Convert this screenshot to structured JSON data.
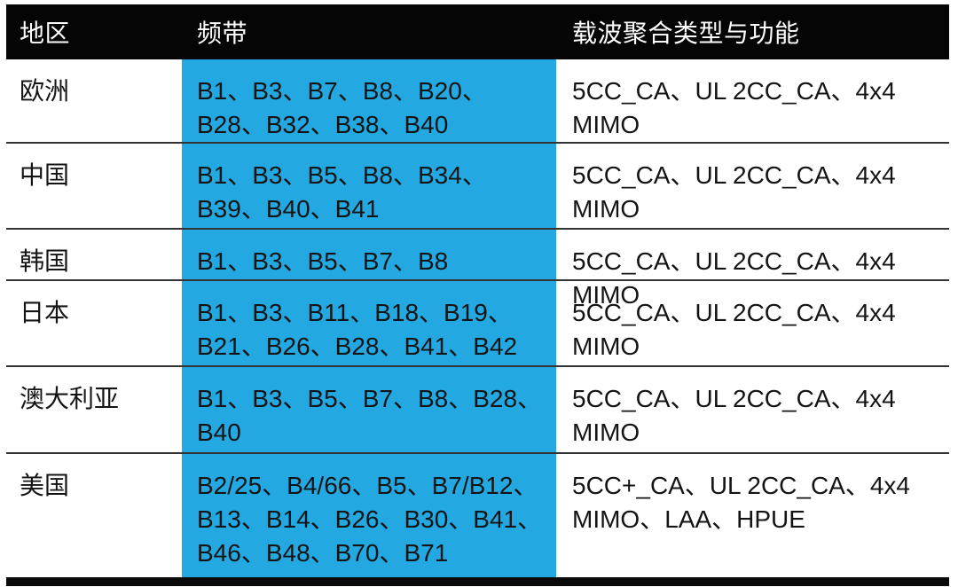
{
  "table": {
    "header": {
      "region": "地区",
      "bands": "频带",
      "ca": "载波聚合类型与功能"
    },
    "rows": [
      {
        "region": "欧洲",
        "bands": [
          "B1、B3、B7、B8、B20、",
          "B28、B32、B38、B40"
        ],
        "ca": [
          "5CC_CA、UL 2CC_CA、4x4 MIMO"
        ]
      },
      {
        "region": "中国",
        "bands": [
          "B1、B3、B5、B8、B34、",
          "B39、B40、B41"
        ],
        "ca": [
          "5CC_CA、UL 2CC_CA、4x4 MIMO"
        ]
      },
      {
        "region": "韩国",
        "bands": [
          "B1、B3、B5、B7、B8"
        ],
        "ca": [
          "5CC_CA、UL 2CC_CA、4x4 MIMO"
        ]
      },
      {
        "region": "日本",
        "bands": [
          "B1、B3、B11、B18、B19、",
          "B21、B26、B28、B41、B42"
        ],
        "ca": [
          "5CC_CA、UL 2CC_CA、4x4 MIMO"
        ]
      },
      {
        "region": "澳大利亚",
        "bands": [
          "B1、B3、B5、B7、B8、B28、",
          "B40"
        ],
        "ca": [
          "5CC_CA、UL 2CC_CA、4x4 MIMO"
        ]
      },
      {
        "region": "美国",
        "bands": [
          "B2/25、B4/66、B5、B7/B12、",
          "B13、B14、B26、B30、B41、",
          "B46、B48、B70、B71"
        ],
        "ca": [
          "5CC+_CA、UL 2CC_CA、4x4",
          "MIMO、LAA、HPUE"
        ]
      }
    ]
  },
  "colors": {
    "header_bg": "#050505",
    "header_text": "#ffffff",
    "band_column_bg": "#24a8e1",
    "body_text": "#141414",
    "divider": "#333333",
    "bottom_bar": "#0a0a0a",
    "page_bg": "#ffffff"
  }
}
